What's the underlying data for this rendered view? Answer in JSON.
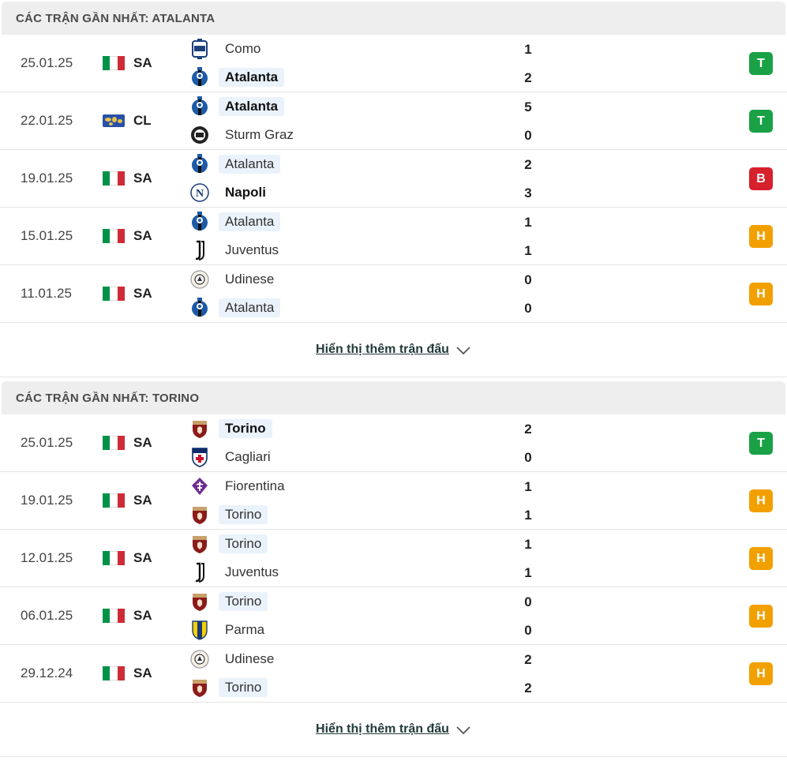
{
  "colors": {
    "win": "#1aa146",
    "loss": "#d6202b",
    "draw": "#f2a000"
  },
  "sections": [
    {
      "title": "CÁC TRẬN GẦN NHẤT: ATALANTA",
      "more_label": "Hiển thị thêm trận đấu",
      "matches": [
        {
          "date": "25.01.25",
          "flag": "italy",
          "league": "SA",
          "home": {
            "name": "Como",
            "logo": "como-logo",
            "highlight": false,
            "bold": false
          },
          "home_score": "1",
          "away": {
            "name": "Atalanta",
            "logo": "atalanta-logo",
            "highlight": true,
            "bold": true
          },
          "away_score": "2",
          "result": "T",
          "result_type": "win"
        },
        {
          "date": "22.01.25",
          "flag": "world",
          "league": "CL",
          "home": {
            "name": "Atalanta",
            "logo": "atalanta-logo",
            "highlight": true,
            "bold": true
          },
          "home_score": "5",
          "away": {
            "name": "Sturm Graz",
            "logo": "sturm-graz-logo",
            "highlight": false,
            "bold": false
          },
          "away_score": "0",
          "result": "T",
          "result_type": "win"
        },
        {
          "date": "19.01.25",
          "flag": "italy",
          "league": "SA",
          "home": {
            "name": "Atalanta",
            "logo": "atalanta-logo",
            "highlight": true,
            "bold": false
          },
          "home_score": "2",
          "away": {
            "name": "Napoli",
            "logo": "napoli-logo",
            "highlight": false,
            "bold": true
          },
          "away_score": "3",
          "result": "B",
          "result_type": "loss"
        },
        {
          "date": "15.01.25",
          "flag": "italy",
          "league": "SA",
          "home": {
            "name": "Atalanta",
            "logo": "atalanta-logo",
            "highlight": true,
            "bold": false
          },
          "home_score": "1",
          "away": {
            "name": "Juventus",
            "logo": "juventus-logo",
            "highlight": false,
            "bold": false
          },
          "away_score": "1",
          "result": "H",
          "result_type": "draw"
        },
        {
          "date": "11.01.25",
          "flag": "italy",
          "league": "SA",
          "home": {
            "name": "Udinese",
            "logo": "udinese-logo",
            "highlight": false,
            "bold": false
          },
          "home_score": "0",
          "away": {
            "name": "Atalanta",
            "logo": "atalanta-logo",
            "highlight": true,
            "bold": false
          },
          "away_score": "0",
          "result": "H",
          "result_type": "draw"
        }
      ]
    },
    {
      "title": "CÁC TRẬN GẦN NHẤT: TORINO",
      "more_label": "Hiển thị thêm trận đấu",
      "matches": [
        {
          "date": "25.01.25",
          "flag": "italy",
          "league": "SA",
          "home": {
            "name": "Torino",
            "logo": "torino-logo",
            "highlight": true,
            "bold": true
          },
          "home_score": "2",
          "away": {
            "name": "Cagliari",
            "logo": "cagliari-logo",
            "highlight": false,
            "bold": false
          },
          "away_score": "0",
          "result": "T",
          "result_type": "win"
        },
        {
          "date": "19.01.25",
          "flag": "italy",
          "league": "SA",
          "home": {
            "name": "Fiorentina",
            "logo": "fiorentina-logo",
            "highlight": false,
            "bold": false
          },
          "home_score": "1",
          "away": {
            "name": "Torino",
            "logo": "torino-logo",
            "highlight": true,
            "bold": false
          },
          "away_score": "1",
          "result": "H",
          "result_type": "draw"
        },
        {
          "date": "12.01.25",
          "flag": "italy",
          "league": "SA",
          "home": {
            "name": "Torino",
            "logo": "torino-logo",
            "highlight": true,
            "bold": false
          },
          "home_score": "1",
          "away": {
            "name": "Juventus",
            "logo": "juventus-logo",
            "highlight": false,
            "bold": false
          },
          "away_score": "1",
          "result": "H",
          "result_type": "draw"
        },
        {
          "date": "06.01.25",
          "flag": "italy",
          "league": "SA",
          "home": {
            "name": "Torino",
            "logo": "torino-logo",
            "highlight": true,
            "bold": false
          },
          "home_score": "0",
          "away": {
            "name": "Parma",
            "logo": "parma-logo",
            "highlight": false,
            "bold": false
          },
          "away_score": "0",
          "result": "H",
          "result_type": "draw"
        },
        {
          "date": "29.12.24",
          "flag": "italy",
          "league": "SA",
          "home": {
            "name": "Udinese",
            "logo": "udinese-logo",
            "highlight": false,
            "bold": false
          },
          "home_score": "2",
          "away": {
            "name": "Torino",
            "logo": "torino-logo",
            "highlight": true,
            "bold": false
          },
          "away_score": "2",
          "result": "H",
          "result_type": "draw"
        }
      ]
    }
  ]
}
